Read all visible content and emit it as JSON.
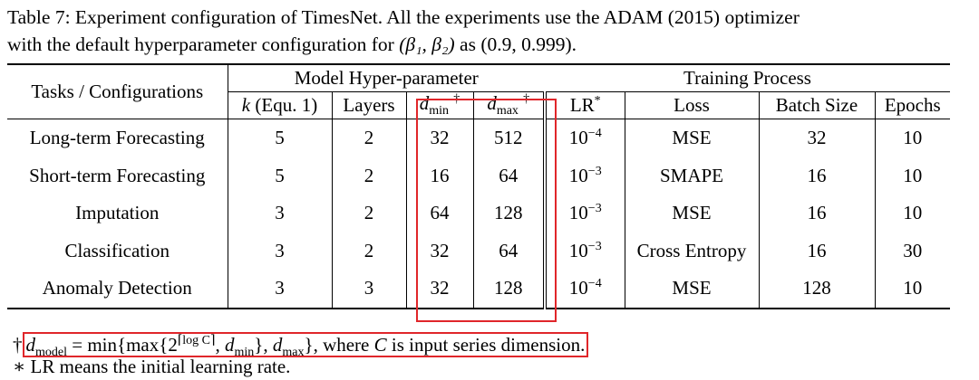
{
  "caption": {
    "line1": "Table 7: Experiment configuration of TimesNet. All the experiments use the ADAM (2015) optimizer",
    "line2_pre": "with the default hyperparameter configuration for ",
    "line2_math": "(β₁, β₂)",
    "line2_post": " as (0.9, 0.999)."
  },
  "header": {
    "tasks_label": "Tasks / Configurations",
    "group_model": "Model Hyper-parameter",
    "group_training": "Training Process",
    "col_k": "k",
    "col_k_suffix": " (Equ. 1)",
    "col_layers": "Layers",
    "col_dmin_var": "d",
    "col_dmin_sub": "min",
    "col_dmax_var": "d",
    "col_dmax_sub": "max",
    "dagger": "†",
    "col_lr": "LR",
    "col_lr_sup": "*",
    "col_loss": "Loss",
    "col_batch": "Batch Size",
    "col_epochs": "Epochs"
  },
  "rows": [
    {
      "task": "Long-term Forecasting",
      "k": "5",
      "layers": "2",
      "dmin": "32",
      "dmax": "512",
      "lr_base": "10",
      "lr_exp": "−4",
      "loss": "MSE",
      "batch": "32",
      "epochs": "10"
    },
    {
      "task": "Short-term Forecasting",
      "k": "5",
      "layers": "2",
      "dmin": "16",
      "dmax": "64",
      "lr_base": "10",
      "lr_exp": "−3",
      "loss": "SMAPE",
      "batch": "16",
      "epochs": "10"
    },
    {
      "task": "Imputation",
      "k": "3",
      "layers": "2",
      "dmin": "64",
      "dmax": "128",
      "lr_base": "10",
      "lr_exp": "−3",
      "loss": "MSE",
      "batch": "16",
      "epochs": "10"
    },
    {
      "task": "Classification",
      "k": "3",
      "layers": "2",
      "dmin": "32",
      "dmax": "64",
      "lr_base": "10",
      "lr_exp": "−3",
      "loss": "Cross Entropy",
      "batch": "16",
      "epochs": "30"
    },
    {
      "task": "Anomaly Detection",
      "k": "3",
      "layers": "3",
      "dmin": "32",
      "dmax": "128",
      "lr_base": "10",
      "lr_exp": "−4",
      "loss": "MSE",
      "batch": "128",
      "epochs": "10"
    }
  ],
  "footnotes": {
    "dagger_mark": "†",
    "formula_lhs_var": "d",
    "formula_lhs_sub": "model",
    "formula_mid1": " = min{max{2",
    "formula_exp": "⌈log C⌉",
    "formula_mid2": ", ",
    "formula_dmin_var": "d",
    "formula_dmin_sub": "min",
    "formula_mid3": "}, ",
    "formula_dmax_var": "d",
    "formula_dmax_sub": "max",
    "formula_end": "}",
    "formula_tail_pre": ", where ",
    "formula_tail_var": "C",
    "formula_tail_post": " is input series dimension.",
    "star_line": "∗ LR means the initial learning rate."
  },
  "colors": {
    "highlight_box": "#e0262a",
    "text": "#000000"
  }
}
